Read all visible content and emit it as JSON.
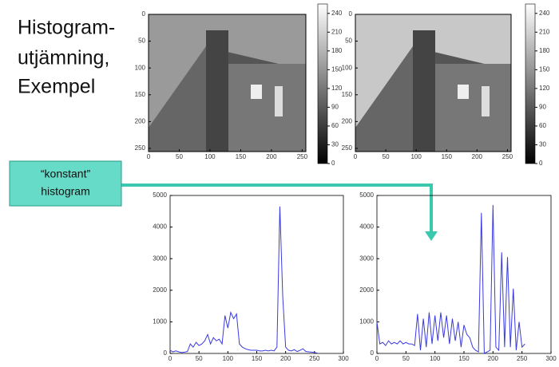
{
  "slide": {
    "title_lines": [
      "Histogram-",
      "utjämning,",
      "Exempel"
    ],
    "callout_lines": [
      "“konstant”",
      "histogram"
    ]
  },
  "chart_data": [
    {
      "type": "image",
      "xlim": [
        0,
        256
      ],
      "ylim": [
        256,
        0
      ],
      "xticks": [
        0,
        50,
        100,
        150,
        200,
        250
      ],
      "yticks": [
        0,
        50,
        100,
        150,
        200,
        250
      ],
      "colorbar_lim": [
        0,
        255
      ],
      "colorbar_ticks": [
        0,
        30,
        60,
        90,
        120,
        150,
        180,
        210,
        240
      ]
    },
    {
      "type": "image",
      "xlim": [
        0,
        256
      ],
      "ylim": [
        256,
        0
      ],
      "xticks": [
        0,
        50,
        100,
        150,
        200,
        250
      ],
      "yticks": [
        0,
        50,
        100,
        150,
        200,
        250
      ],
      "colorbar_lim": [
        0,
        255
      ],
      "colorbar_ticks": [
        0,
        30,
        60,
        90,
        120,
        150,
        180,
        210,
        240
      ]
    },
    {
      "type": "line",
      "xlim": [
        0,
        300
      ],
      "ylim": [
        0,
        5000
      ],
      "xticks": [
        0,
        50,
        100,
        150,
        200,
        250,
        300
      ],
      "yticks": [
        0,
        1000,
        2000,
        3000,
        4000,
        5000
      ],
      "x": [
        0,
        5,
        10,
        15,
        20,
        25,
        30,
        35,
        40,
        45,
        50,
        55,
        60,
        65,
        70,
        75,
        80,
        85,
        90,
        95,
        100,
        105,
        110,
        115,
        120,
        125,
        130,
        135,
        140,
        145,
        150,
        155,
        160,
        165,
        170,
        175,
        180,
        185,
        190,
        195,
        200,
        205,
        210,
        215,
        220,
        225,
        230,
        235,
        240,
        245,
        250,
        255
      ],
      "series": [
        {
          "color": "#3a3ae0",
          "values": [
            100,
            50,
            80,
            50,
            30,
            40,
            60,
            300,
            200,
            350,
            250,
            300,
            400,
            600,
            300,
            500,
            400,
            450,
            300,
            1200,
            800,
            1300,
            1100,
            1250,
            300,
            200,
            150,
            120,
            100,
            100,
            100,
            80,
            80,
            100,
            80,
            100,
            80,
            200,
            4650,
            1800,
            200,
            100,
            80,
            120,
            60,
            100,
            150,
            60,
            50,
            40,
            30,
            10
          ]
        }
      ]
    },
    {
      "type": "line",
      "xlim": [
        0,
        300
      ],
      "ylim": [
        0,
        5000
      ],
      "xticks": [
        0,
        50,
        100,
        150,
        200,
        250,
        300
      ],
      "yticks": [
        0,
        1000,
        2000,
        3000,
        4000,
        5000
      ],
      "x": [
        0,
        5,
        10,
        15,
        20,
        25,
        30,
        35,
        40,
        45,
        50,
        55,
        60,
        65,
        70,
        75,
        80,
        85,
        90,
        95,
        100,
        105,
        110,
        115,
        120,
        125,
        130,
        135,
        140,
        145,
        150,
        155,
        160,
        165,
        170,
        175,
        180,
        185,
        190,
        195,
        200,
        205,
        210,
        215,
        220,
        225,
        230,
        235,
        240,
        245,
        250,
        255
      ],
      "series": [
        {
          "color": "#3a3ae0",
          "values": [
            1000,
            300,
            350,
            250,
            400,
            300,
            350,
            300,
            400,
            300,
            350,
            300,
            300,
            250,
            1250,
            100,
            1100,
            200,
            1300,
            300,
            1200,
            400,
            1300,
            500,
            1200,
            300,
            1100,
            400,
            1000,
            200,
            900,
            600,
            500,
            200,
            100,
            50,
            4450,
            0,
            50,
            100,
            4700,
            200,
            100,
            3200,
            200,
            3050,
            200,
            2050,
            100,
            1000,
            200,
            300
          ]
        }
      ]
    }
  ]
}
